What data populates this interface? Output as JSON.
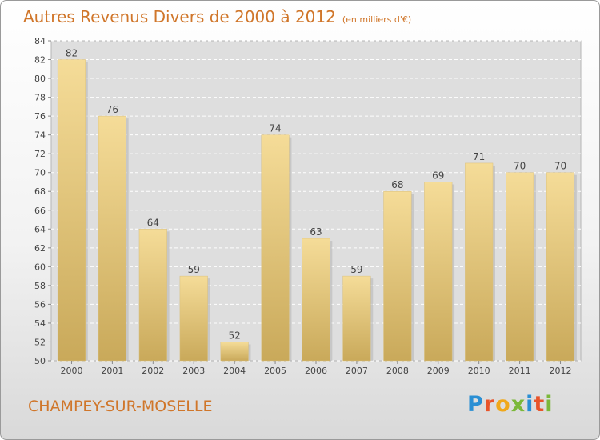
{
  "header": {
    "title": "Autres Revenus Divers de 2000 à 2012",
    "subtitle": "(en milliers d'€)"
  },
  "footer": {
    "commune": "CHAMPEY-SUR-MOSELLE",
    "logo_text": "Proxiti",
    "logo_colors": [
      "#2a8fd4",
      "#e8542a",
      "#f0a81a",
      "#7bb83a",
      "#2a8fd4",
      "#e8542a",
      "#7bb83a"
    ]
  },
  "colors": {
    "title": "#d0762a",
    "bar_light": "#f5dc98",
    "bar_dark": "#c9a95a"
  },
  "chart_data": {
    "type": "bar",
    "categories": [
      "2000",
      "2001",
      "2002",
      "2003",
      "2004",
      "2005",
      "2006",
      "2007",
      "2008",
      "2009",
      "2010",
      "2011",
      "2012"
    ],
    "values": [
      82,
      76,
      64,
      59,
      52,
      74,
      63,
      59,
      68,
      69,
      71,
      70,
      70
    ],
    "ylim": [
      50,
      84
    ],
    "yticks": [
      50,
      52,
      54,
      56,
      58,
      60,
      62,
      64,
      66,
      68,
      70,
      72,
      74,
      76,
      78,
      80,
      82,
      84
    ],
    "grid": true,
    "data_labels": true
  }
}
